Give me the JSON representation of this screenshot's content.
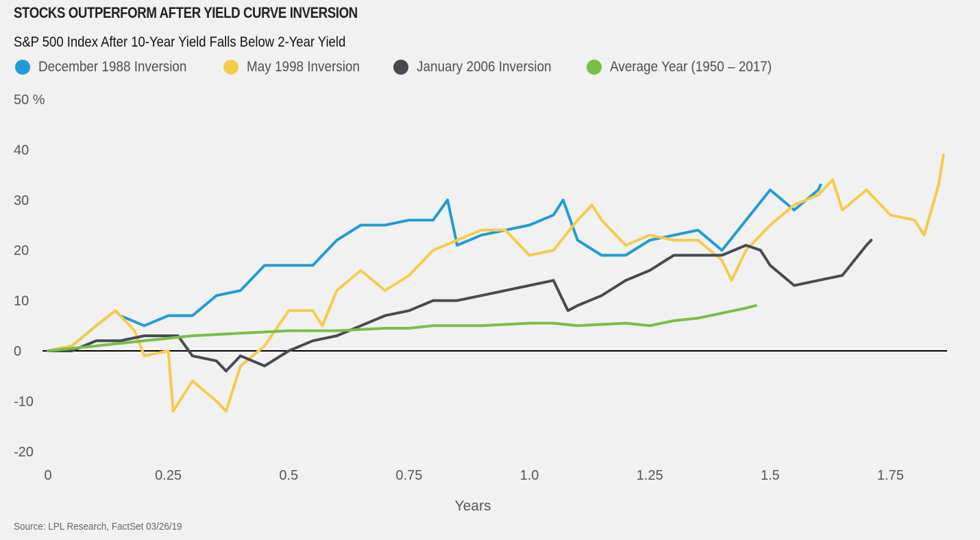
{
  "chart_data": {
    "type": "line",
    "title": "STOCKS OUTPERFORM AFTER YIELD CURVE INVERSION",
    "subtitle": "S&P 500 Index After 10-Year Yield Falls Below 2-Year Yield",
    "xlabel": "Years",
    "ylabel": "",
    "xlim": [
      0,
      1.9
    ],
    "ylim": [
      -20,
      50
    ],
    "x_ticks": [
      "0",
      "0.25",
      "0.5",
      "0.75",
      "1.0",
      "1.25",
      "1.5",
      "1.75"
    ],
    "x_tick_values": [
      0,
      0.25,
      0.5,
      0.75,
      1.0,
      1.25,
      1.5,
      1.75
    ],
    "y_ticks": [
      "50 %",
      "40",
      "30",
      "20",
      "10",
      "0",
      "-10",
      "-20"
    ],
    "y_tick_values": [
      50,
      40,
      30,
      20,
      10,
      0,
      -10,
      -20
    ],
    "grid": false,
    "legend_position": "top",
    "series": [
      {
        "name": "December 1988 Inversion",
        "color": "#229bd6",
        "x": [
          0,
          0.05,
          0.1,
          0.14,
          0.15,
          0.2,
          0.25,
          0.3,
          0.35,
          0.4,
          0.45,
          0.5,
          0.55,
          0.6,
          0.65,
          0.7,
          0.75,
          0.8,
          0.83,
          0.85,
          0.9,
          0.95,
          1.0,
          1.05,
          1.07,
          1.1,
          1.15,
          1.2,
          1.25,
          1.3,
          1.35,
          1.4,
          1.45,
          1.5,
          1.55,
          1.6,
          1.605
        ],
        "y": [
          0,
          1,
          5,
          8,
          7,
          5,
          7,
          7,
          11,
          12,
          17,
          17,
          17,
          22,
          25,
          25,
          26,
          26,
          30,
          21,
          23,
          24,
          25,
          27,
          30,
          22,
          19,
          19,
          22,
          23,
          24,
          20,
          26,
          32,
          28,
          32,
          33
        ]
      },
      {
        "name": "May 1998 Inversion",
        "color": "#f5cb4a",
        "x": [
          0,
          0.05,
          0.1,
          0.14,
          0.18,
          0.2,
          0.25,
          0.26,
          0.3,
          0.35,
          0.37,
          0.4,
          0.45,
          0.5,
          0.55,
          0.57,
          0.6,
          0.65,
          0.7,
          0.75,
          0.8,
          0.85,
          0.9,
          0.95,
          1.0,
          1.05,
          1.1,
          1.13,
          1.15,
          1.2,
          1.25,
          1.3,
          1.35,
          1.4,
          1.42,
          1.45,
          1.5,
          1.55,
          1.6,
          1.63,
          1.65,
          1.7,
          1.75,
          1.8,
          1.82,
          1.85,
          1.86
        ],
        "y": [
          0,
          1,
          5,
          8,
          4,
          -1,
          0,
          -12,
          -6,
          -10,
          -12,
          -3,
          1,
          8,
          8,
          5,
          12,
          16,
          12,
          15,
          20,
          22,
          24,
          24,
          19,
          20,
          26,
          29,
          26,
          21,
          23,
          22,
          22,
          18,
          14,
          20,
          25,
          29,
          31,
          34,
          28,
          32,
          27,
          26,
          23,
          33,
          39
        ]
      },
      {
        "name": "January 2006 Inversion",
        "color": "#474b51",
        "x": [
          0,
          0.05,
          0.1,
          0.15,
          0.2,
          0.27,
          0.3,
          0.35,
          0.37,
          0.4,
          0.45,
          0.5,
          0.55,
          0.6,
          0.65,
          0.7,
          0.75,
          0.8,
          0.85,
          0.9,
          0.95,
          1.0,
          1.05,
          1.08,
          1.1,
          1.15,
          1.2,
          1.25,
          1.3,
          1.35,
          1.4,
          1.45,
          1.48,
          1.5,
          1.55,
          1.6,
          1.65,
          1.7,
          1.71
        ],
        "y": [
          0,
          0,
          2,
          2,
          3,
          3,
          -1,
          -2,
          -4,
          -1,
          -3,
          0,
          2,
          3,
          5,
          7,
          8,
          10,
          10,
          11,
          12,
          13,
          14,
          8,
          9,
          11,
          14,
          16,
          19,
          19,
          19,
          21,
          20,
          17,
          13,
          14,
          15,
          21,
          22
        ]
      },
      {
        "name": "Average Year (1950 – 2017)",
        "color": "#77bf45",
        "x": [
          0,
          0.1,
          0.2,
          0.3,
          0.4,
          0.5,
          0.6,
          0.7,
          0.75,
          0.8,
          0.9,
          1.0,
          1.05,
          1.1,
          1.2,
          1.25,
          1.3,
          1.35,
          1.4,
          1.45,
          1.47
        ],
        "y": [
          0,
          1,
          2,
          3,
          3.5,
          4,
          4,
          4.5,
          4.5,
          5,
          5,
          5.5,
          5.5,
          5,
          5.5,
          5,
          6,
          6.5,
          7.5,
          8.5,
          9
        ]
      }
    ],
    "source": "Source: LPL Research, FactSet 03/26/19"
  }
}
